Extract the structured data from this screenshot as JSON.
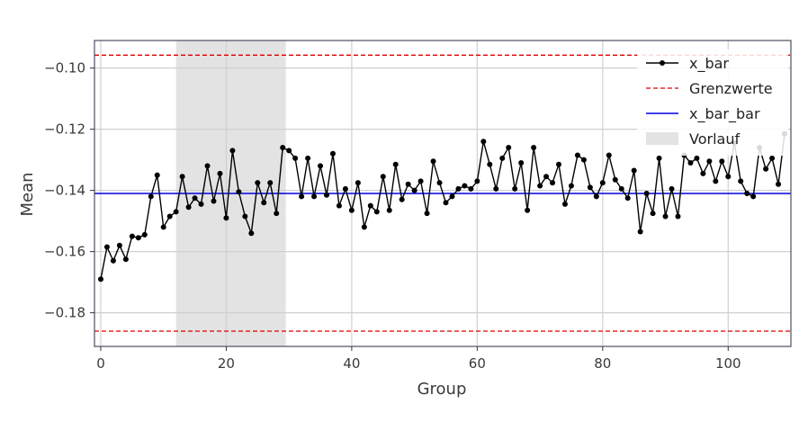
{
  "chart_data": {
    "type": "line",
    "xlabel": "Group",
    "ylabel": "Mean",
    "xlim": [
      -1,
      110
    ],
    "ylim": [
      -0.191,
      -0.091
    ],
    "xticks": [
      0,
      20,
      40,
      60,
      80,
      100
    ],
    "yticks": [
      -0.1,
      -0.12,
      -0.14,
      -0.16,
      -0.18
    ],
    "xtick_labels": [
      "0",
      "20",
      "40",
      "60",
      "80",
      "100"
    ],
    "ytick_labels": [
      "−0.10",
      "−0.12",
      "−0.14",
      "−0.16",
      "−0.18"
    ],
    "grid": true,
    "legend_position": "top-right",
    "shaded_region": {
      "name": "Vorlauf",
      "x_start": 12,
      "x_end": 29.5,
      "color": "#e3e3e3"
    },
    "limits": {
      "name": "Grenzwerte",
      "upper": -0.0958,
      "lower": -0.186,
      "color": "#e00000"
    },
    "center_line": {
      "name": "x_bar_bar",
      "y": -0.141,
      "color": "#0000e0"
    },
    "series": [
      {
        "name": "x_bar",
        "color": "#000000",
        "x": [
          0,
          1,
          2,
          3,
          4,
          5,
          6,
          7,
          8,
          9,
          10,
          11,
          12,
          13,
          14,
          15,
          16,
          17,
          18,
          19,
          20,
          21,
          22,
          23,
          24,
          25,
          26,
          27,
          28,
          29,
          30,
          31,
          32,
          33,
          34,
          35,
          36,
          37,
          38,
          39,
          40,
          41,
          42,
          43,
          44,
          45,
          46,
          47,
          48,
          49,
          50,
          51,
          52,
          53,
          54,
          55,
          56,
          57,
          58,
          59,
          60,
          61,
          62,
          63,
          64,
          65,
          66,
          67,
          68,
          69,
          70,
          71,
          72,
          73,
          74,
          75,
          76,
          77,
          78,
          79,
          80,
          81,
          82,
          83,
          84,
          85,
          86,
          87,
          88,
          89,
          90,
          91,
          92,
          93,
          94,
          95,
          96,
          97,
          98,
          99,
          100,
          101,
          102,
          103,
          104,
          105,
          106,
          107,
          108,
          109
        ],
        "values": [
          -0.169,
          -0.1585,
          -0.163,
          -0.158,
          -0.1625,
          -0.155,
          -0.1555,
          -0.1545,
          -0.142,
          -0.135,
          -0.152,
          -0.1485,
          -0.147,
          -0.1355,
          -0.1455,
          -0.1425,
          -0.1445,
          -0.132,
          -0.1435,
          -0.1345,
          -0.149,
          -0.127,
          -0.1405,
          -0.1485,
          -0.154,
          -0.1375,
          -0.144,
          -0.1375,
          -0.1475,
          -0.126,
          -0.127,
          -0.1295,
          -0.142,
          -0.1295,
          -0.142,
          -0.132,
          -0.1415,
          -0.128,
          -0.145,
          -0.1395,
          -0.1465,
          -0.1375,
          -0.152,
          -0.145,
          -0.147,
          -0.1355,
          -0.1465,
          -0.1315,
          -0.143,
          -0.138,
          -0.14,
          -0.137,
          -0.1475,
          -0.1305,
          -0.1375,
          -0.144,
          -0.142,
          -0.1395,
          -0.1385,
          -0.1395,
          -0.137,
          -0.124,
          -0.1315,
          -0.1395,
          -0.1295,
          -0.126,
          -0.1395,
          -0.131,
          -0.1465,
          -0.126,
          -0.1385,
          -0.1355,
          -0.1375,
          -0.1315,
          -0.1445,
          -0.1385,
          -0.1285,
          -0.13,
          -0.139,
          -0.142,
          -0.1375,
          -0.1285,
          -0.1365,
          -0.1395,
          -0.1425,
          -0.1335,
          -0.1535,
          -0.141,
          -0.1475,
          -0.1295,
          -0.1485,
          -0.1395,
          -0.1485,
          -0.1285,
          -0.131,
          -0.1295,
          -0.1345,
          -0.1305,
          -0.137,
          -0.1305,
          -0.1355,
          -0.1245,
          -0.137,
          -0.141,
          -0.142,
          -0.126,
          -0.133,
          -0.1295,
          -0.138,
          -0.1215
        ]
      }
    ],
    "legend": [
      {
        "label": "x_bar",
        "kind": "line-marker",
        "color": "#000000"
      },
      {
        "label": "Grenzwerte",
        "kind": "dashed",
        "color": "#e00000"
      },
      {
        "label": "x_bar_bar",
        "kind": "solid",
        "color": "#0000e0"
      },
      {
        "label": "Vorlauf",
        "kind": "patch",
        "color": "#e3e3e3"
      }
    ]
  }
}
